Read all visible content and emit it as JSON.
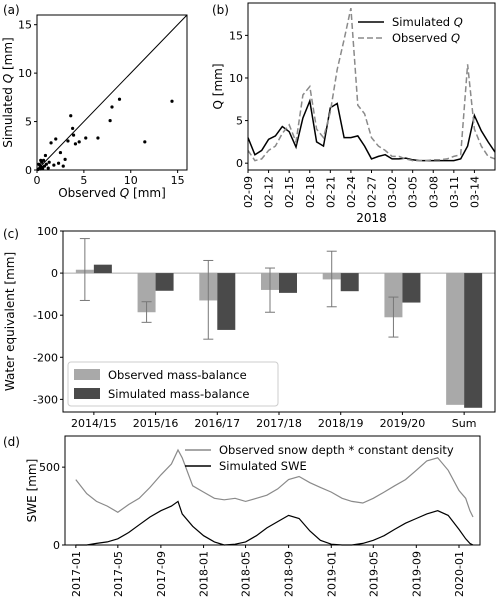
{
  "chart_data": [
    {
      "panel": "(a)",
      "type": "scatter",
      "xlabel_prefix": "Observed ",
      "xlabel_var": "Q",
      "xlabel_suffix": " [mm]",
      "ylabel_prefix": "Simulated ",
      "ylabel_var": "Q",
      "ylabel_suffix": " [mm]",
      "xlim": [
        0,
        16
      ],
      "ylim": [
        0,
        16
      ],
      "xticks": [
        0,
        5,
        10,
        15
      ],
      "yticks": [
        0,
        5,
        10,
        15
      ],
      "one_to_one_line": true,
      "points": [
        [
          0.1,
          0.05
        ],
        [
          0.2,
          0.1
        ],
        [
          0.3,
          0.2
        ],
        [
          0.4,
          0.1
        ],
        [
          0.5,
          0.3
        ],
        [
          0.6,
          0.15
        ],
        [
          0.3,
          0.5
        ],
        [
          0.5,
          0.8
        ],
        [
          0.8,
          0.4
        ],
        [
          1.0,
          0.6
        ],
        [
          0.7,
          1.0
        ],
        [
          1.2,
          0.2
        ],
        [
          0.9,
          1.5
        ],
        [
          1.3,
          0.8
        ],
        [
          1.5,
          2.8
        ],
        [
          1.8,
          0.5
        ],
        [
          2.0,
          3.2
        ],
        [
          2.3,
          0.7
        ],
        [
          2.5,
          1.8
        ],
        [
          2.8,
          0.4
        ],
        [
          3.0,
          1.1
        ],
        [
          3.3,
          3.0
        ],
        [
          3.6,
          5.6
        ],
        [
          3.8,
          4.3
        ],
        [
          3.9,
          3.6
        ],
        [
          4.1,
          2.7
        ],
        [
          4.5,
          2.9
        ],
        [
          5.2,
          3.3
        ],
        [
          6.5,
          3.3
        ],
        [
          7.8,
          5.1
        ],
        [
          8.0,
          6.5
        ],
        [
          8.8,
          7.3
        ],
        [
          11.5,
          2.9
        ],
        [
          14.4,
          7.1
        ],
        [
          0.2,
          0.6
        ],
        [
          0.4,
          1.0
        ]
      ]
    },
    {
      "panel": "(b)",
      "type": "line",
      "ylabel": "Q [mm]",
      "xlabel": "2018",
      "ylim": [
        -0.8,
        18.8
      ],
      "yticks": [
        0,
        5,
        10,
        15
      ],
      "xticklabels": [
        "02-09",
        "02-12",
        "02-15",
        "02-18",
        "02-21",
        "02-24",
        "02-27",
        "03-02",
        "03-05",
        "03-08",
        "03-11",
        "03-14"
      ],
      "legend_position": "upper-right",
      "series": [
        {
          "name_prefix": "Simulated ",
          "name_var": "Q",
          "color": "#000000",
          "dash": "",
          "values": [
            3.0,
            1.0,
            1.5,
            2.8,
            3.2,
            4.3,
            3.7,
            1.9,
            5.3,
            7.3,
            2.5,
            2.0,
            6.5,
            7.0,
            3.0,
            3.0,
            3.2,
            2.0,
            0.5,
            0.8,
            1.0,
            0.5,
            0.5,
            0.6,
            0.4,
            0.3,
            0.3,
            0.3,
            0.3,
            0.3,
            0.3,
            0.5,
            2.0,
            5.6,
            3.8,
            2.5,
            1.3
          ]
        },
        {
          "name_prefix": "Observed ",
          "name_var": "Q",
          "color": "#8a8a8a",
          "dash": "6,3",
          "values": [
            1.5,
            0.3,
            0.5,
            1.5,
            2.0,
            3.5,
            4.5,
            2.5,
            8.0,
            9.0,
            4.0,
            3.0,
            6.0,
            11.0,
            14.5,
            18.2,
            6.8,
            5.8,
            3.0,
            2.0,
            1.5,
            0.8,
            0.8,
            0.5,
            0.3,
            0.3,
            0.3,
            0.4,
            0.4,
            0.5,
            0.8,
            1.0,
            11.6,
            4.0,
            2.0,
            0.8,
            0.5
          ]
        }
      ]
    },
    {
      "panel": "(c)",
      "type": "bar",
      "ylabel": "Water equivalent [mm]",
      "ylim": [
        -330,
        100
      ],
      "yticks": [
        -300,
        -200,
        -100,
        0,
        100
      ],
      "categories": [
        "2014/15",
        "2015/16",
        "2016/17",
        "2017/18",
        "2018/19",
        "2019/20",
        "Sum"
      ],
      "legend_position": "lower-left",
      "series": [
        {
          "name": "Observed mass-balance",
          "color": "#a9a9a9",
          "values": [
            8,
            -93,
            -65,
            -40,
            -15,
            -105,
            -313
          ],
          "error_low": [
            -65,
            -117,
            -157,
            -93,
            -80,
            -152,
            null
          ],
          "error_high": [
            82,
            -68,
            30,
            12,
            52,
            -57,
            null
          ]
        },
        {
          "name": "Simulated mass-balance",
          "color": "#4a4a4a",
          "values": [
            20,
            -42,
            -135,
            -47,
            -43,
            -70,
            -320
          ]
        }
      ]
    },
    {
      "panel": "(d)",
      "type": "line",
      "ylabel": "SWE [mm]",
      "ylim": [
        0,
        700
      ],
      "yticks": [
        0,
        500
      ],
      "xlim": [
        "2016-12-01",
        "2020-03-01"
      ],
      "xticklabels": [
        "2017-01",
        "2017-05",
        "2017-09",
        "2018-01",
        "2018-05",
        "2018-09",
        "2019-01",
        "2019-05",
        "2019-09",
        "2020-01"
      ],
      "legend_position": "upper-right",
      "series": [
        {
          "name": "Observed snow depth * constant density",
          "color": "#8a8a8a",
          "points": [
            [
              "2017-01-01",
              420
            ],
            [
              "2017-02-01",
              330
            ],
            [
              "2017-03-01",
              280
            ],
            [
              "2017-04-01",
              250
            ],
            [
              "2017-05-01",
              210
            ],
            [
              "2017-06-01",
              260
            ],
            [
              "2017-07-01",
              300
            ],
            [
              "2017-08-01",
              370
            ],
            [
              "2017-09-01",
              450
            ],
            [
              "2017-10-01",
              520
            ],
            [
              "2017-10-20",
              610
            ],
            [
              "2017-11-01",
              560
            ],
            [
              "2017-12-01",
              380
            ],
            [
              "2018-01-01",
              340
            ],
            [
              "2018-02-01",
              300
            ],
            [
              "2018-03-01",
              290
            ],
            [
              "2018-04-01",
              300
            ],
            [
              "2018-05-01",
              280
            ],
            [
              "2018-06-01",
              300
            ],
            [
              "2018-07-01",
              320
            ],
            [
              "2018-08-01",
              360
            ],
            [
              "2018-09-01",
              420
            ],
            [
              "2018-10-01",
              440
            ],
            [
              "2018-11-01",
              400
            ],
            [
              "2018-12-01",
              370
            ],
            [
              "2019-01-01",
              340
            ],
            [
              "2019-02-01",
              300
            ],
            [
              "2019-03-01",
              280
            ],
            [
              "2019-04-01",
              270
            ],
            [
              "2019-05-01",
              300
            ],
            [
              "2019-06-01",
              340
            ],
            [
              "2019-07-01",
              380
            ],
            [
              "2019-08-01",
              420
            ],
            [
              "2019-09-01",
              480
            ],
            [
              "2019-10-01",
              540
            ],
            [
              "2019-11-01",
              560
            ],
            [
              "2019-12-01",
              480
            ],
            [
              "2020-01-01",
              350
            ],
            [
              "2020-01-20",
              300
            ],
            [
              "2020-02-01",
              220
            ],
            [
              "2020-02-10",
              180
            ]
          ]
        },
        {
          "name": "Simulated SWE",
          "color": "#000000",
          "points": [
            [
              "2017-01-01",
              0
            ],
            [
              "2017-02-01",
              0
            ],
            [
              "2017-03-01",
              10
            ],
            [
              "2017-04-01",
              20
            ],
            [
              "2017-05-01",
              40
            ],
            [
              "2017-06-01",
              80
            ],
            [
              "2017-07-01",
              130
            ],
            [
              "2017-08-01",
              180
            ],
            [
              "2017-09-01",
              220
            ],
            [
              "2017-10-01",
              250
            ],
            [
              "2017-10-20",
              280
            ],
            [
              "2017-11-01",
              200
            ],
            [
              "2017-12-01",
              120
            ],
            [
              "2018-01-01",
              60
            ],
            [
              "2018-02-01",
              20
            ],
            [
              "2018-03-01",
              0
            ],
            [
              "2018-04-01",
              5
            ],
            [
              "2018-05-01",
              20
            ],
            [
              "2018-06-01",
              60
            ],
            [
              "2018-07-01",
              110
            ],
            [
              "2018-08-01",
              150
            ],
            [
              "2018-09-01",
              190
            ],
            [
              "2018-10-01",
              170
            ],
            [
              "2018-11-01",
              90
            ],
            [
              "2018-12-01",
              30
            ],
            [
              "2019-01-01",
              5
            ],
            [
              "2019-02-01",
              0
            ],
            [
              "2019-03-01",
              0
            ],
            [
              "2019-04-01",
              10
            ],
            [
              "2019-05-01",
              30
            ],
            [
              "2019-06-01",
              60
            ],
            [
              "2019-07-01",
              100
            ],
            [
              "2019-08-01",
              140
            ],
            [
              "2019-09-01",
              170
            ],
            [
              "2019-10-01",
              200
            ],
            [
              "2019-11-01",
              220
            ],
            [
              "2019-12-01",
              190
            ],
            [
              "2020-01-01",
              100
            ],
            [
              "2020-01-20",
              40
            ],
            [
              "2020-02-01",
              10
            ],
            [
              "2020-02-10",
              0
            ]
          ]
        }
      ]
    }
  ]
}
